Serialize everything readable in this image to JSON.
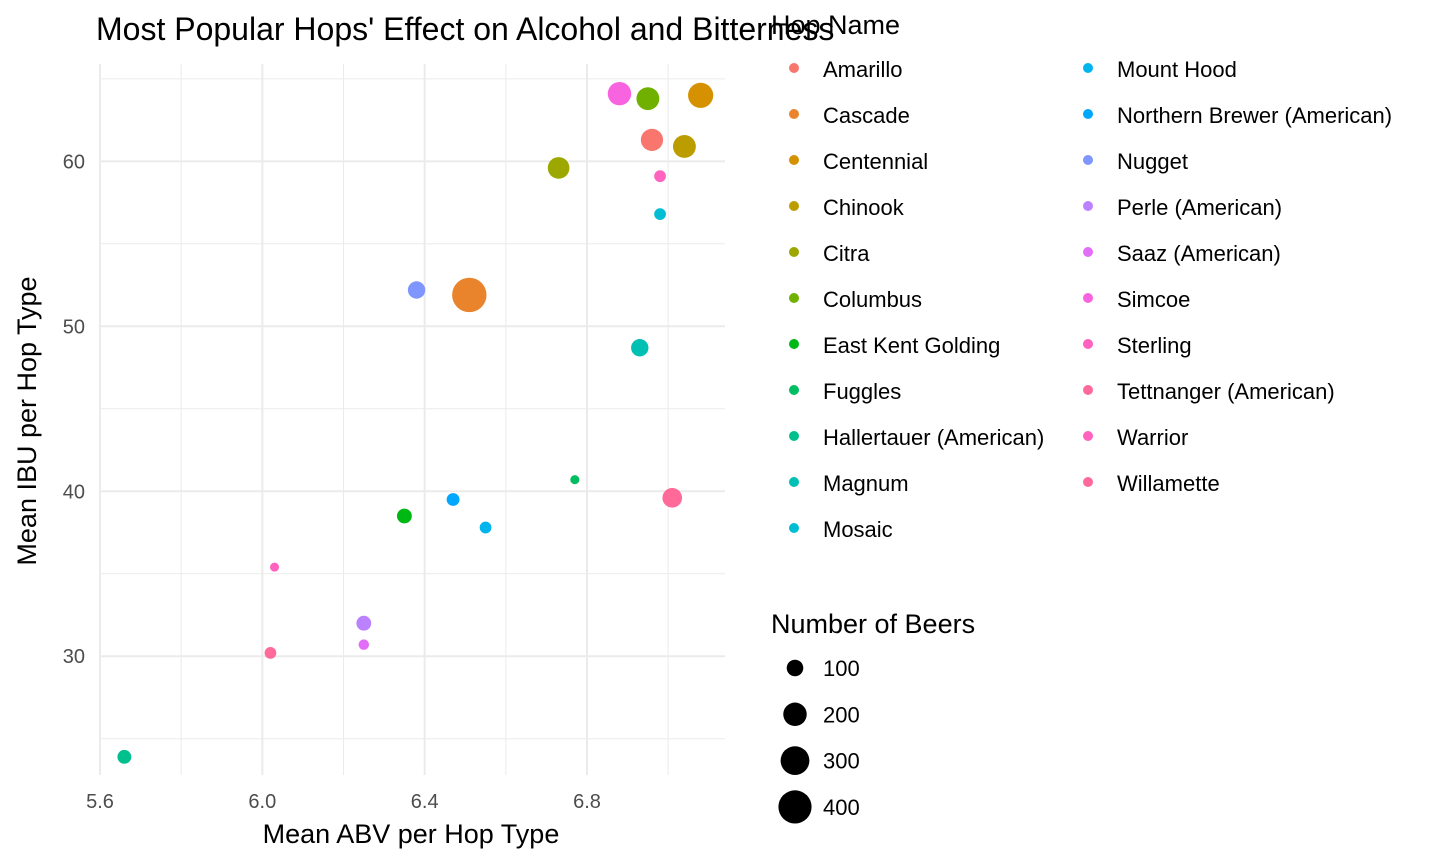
{
  "chart_data": {
    "type": "scatter",
    "title": "Most Popular Hops' Effect on Alcohol and Bitterness",
    "xlabel": "Mean ABV per Hop Type",
    "ylabel": "Mean IBU per Hop Type",
    "xlim": [
      5.6,
      7.14
    ],
    "ylim": [
      22.8,
      65.9
    ],
    "x_ticks": [
      5.6,
      6.0,
      6.4,
      6.8
    ],
    "x_tick_labels": [
      "5.6",
      "6.0",
      "6.4",
      "6.8"
    ],
    "y_ticks": [
      30,
      40,
      50,
      60
    ],
    "y_tick_labels": [
      "30",
      "40",
      "50",
      "60"
    ],
    "grid": true,
    "legend_color": {
      "title": "Hop Name",
      "position": "right"
    },
    "legend_size": {
      "title": "Number of Beers",
      "entries": [
        {
          "label": "100",
          "value": 100
        },
        {
          "label": "200",
          "value": 200
        },
        {
          "label": "300",
          "value": 300
        },
        {
          "label": "400",
          "value": 400
        }
      ]
    },
    "series": [
      {
        "name": "Amarillo",
        "color": "#F8766D",
        "x": 6.96,
        "y": 61.3,
        "size": 180
      },
      {
        "name": "Cascade",
        "color": "#E9842C",
        "x": 6.51,
        "y": 51.9,
        "size": 430
      },
      {
        "name": "Centennial",
        "color": "#D69100",
        "x": 7.08,
        "y": 64.0,
        "size": 230
      },
      {
        "name": "Chinook",
        "color": "#BC9D00",
        "x": 7.04,
        "y": 60.9,
        "size": 190
      },
      {
        "name": "Citra",
        "color": "#9CA700",
        "x": 6.73,
        "y": 59.6,
        "size": 170
      },
      {
        "name": "Columbus",
        "color": "#6FB000",
        "x": 6.95,
        "y": 63.8,
        "size": 190
      },
      {
        "name": "East Kent Golding",
        "color": "#00B813",
        "x": 6.35,
        "y": 38.5,
        "size": 80
      },
      {
        "name": "Fuggles",
        "color": "#00BD61",
        "x": 6.77,
        "y": 40.7,
        "size": 30
      },
      {
        "name": "Hallertauer (American)",
        "color": "#00C08E",
        "x": 5.66,
        "y": 23.9,
        "size": 70
      },
      {
        "name": "Magnum",
        "color": "#00C0B4",
        "x": 6.93,
        "y": 48.7,
        "size": 110
      },
      {
        "name": "Mosaic",
        "color": "#00BDD4",
        "x": 6.98,
        "y": 56.8,
        "size": 50
      },
      {
        "name": "Mount Hood",
        "color": "#00B5EE",
        "x": 6.55,
        "y": 37.8,
        "size": 50
      },
      {
        "name": "Northern Brewer (American)",
        "color": "#00A7FF",
        "x": 6.47,
        "y": 39.5,
        "size": 60
      },
      {
        "name": "Nugget",
        "color": "#7F96FF",
        "x": 6.38,
        "y": 52.2,
        "size": 110
      },
      {
        "name": "Perle (American)",
        "color": "#BC81FF",
        "x": 6.25,
        "y": 32.0,
        "size": 80
      },
      {
        "name": "Saaz (American)",
        "color": "#E26EF7",
        "x": 6.25,
        "y": 30.7,
        "size": 40
      },
      {
        "name": "Simcoe",
        "color": "#F863DF",
        "x": 6.88,
        "y": 64.1,
        "size": 200
      },
      {
        "name": "Sterling",
        "color": "#FF62BF",
        "x": 6.03,
        "y": 35.4,
        "size": 20
      },
      {
        "name": "Tettnanger (American)",
        "color": "#FF6A9A",
        "x": 6.02,
        "y": 30.2,
        "size": 50
      },
      {
        "name": "Warrior",
        "color": "#FF62BF",
        "x": 6.98,
        "y": 59.1,
        "size": 50
      },
      {
        "name": "Willamette",
        "color": "#FF6A9A",
        "x": 7.01,
        "y": 39.6,
        "size": 140
      }
    ]
  }
}
